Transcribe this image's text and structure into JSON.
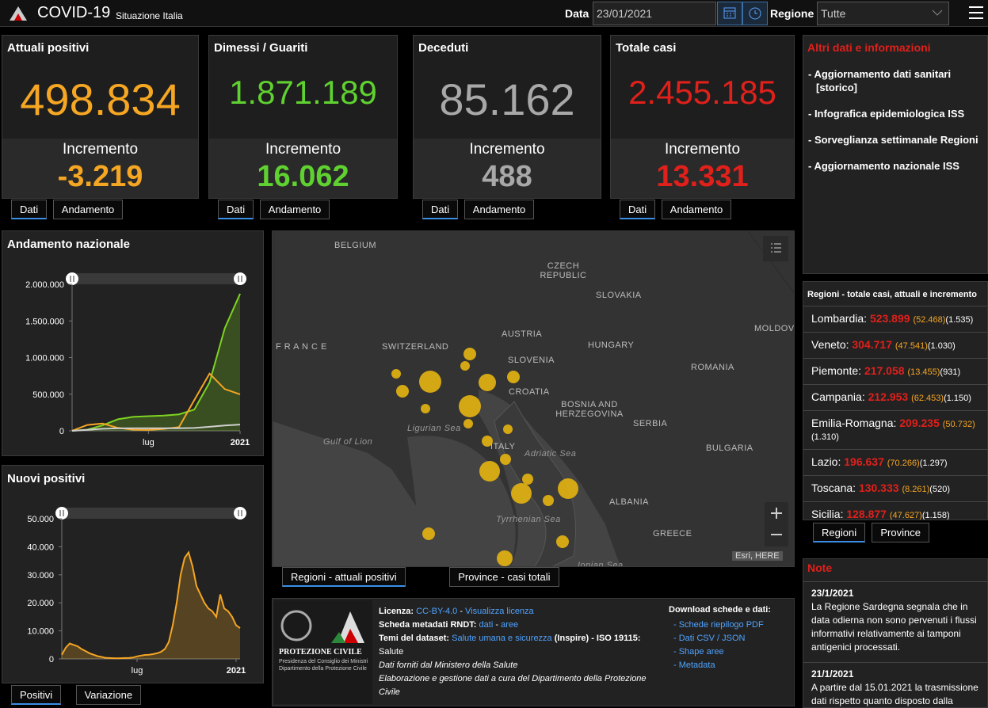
{
  "header": {
    "title": "COVID-19",
    "subtitle": "Situazione Italia",
    "date_label": "Data",
    "date": "23/01/2021",
    "region_label": "Regione",
    "region": "Tutte"
  },
  "cards": [
    {
      "title": "Attuali positivi",
      "value": "498.834",
      "increment_label": "Incremento",
      "increment": "-3.219",
      "color": "#f5a623",
      "tabs": [
        "Dati",
        "Andamento"
      ]
    },
    {
      "title": "Dimessi / Guariti",
      "value": "1.871.189",
      "increment_label": "Incremento",
      "increment": "16.062",
      "color": "#5fd130",
      "tabs": [
        "Dati",
        "Andamento"
      ]
    },
    {
      "title": "Deceduti",
      "value": "85.162",
      "increment_label": "Incremento",
      "increment": "488",
      "color": "#a8a8a8",
      "tabs": [
        "Dati",
        "Andamento"
      ]
    },
    {
      "title": "Totale casi",
      "value": "2.455.185",
      "increment_label": "Incremento",
      "increment": "13.331",
      "color": "#e0201b",
      "tabs": [
        "Dati",
        "Andamento"
      ]
    }
  ],
  "chart_data": [
    {
      "type": "line",
      "title": "Andamento nazionale",
      "ylim": [
        0,
        2000000
      ],
      "yticks": [
        0,
        {
          "value": 500000,
          "label": "500.000"
        },
        {
          "value": 1000000,
          "label": "1.000.000"
        },
        {
          "value": 1500000,
          "label": "1.500.000"
        },
        {
          "value": 2000000,
          "label": "2.000.000"
        }
      ],
      "xlim": [
        0,
        11
      ],
      "xticks": [
        {
          "value": 5,
          "label": "lug"
        },
        {
          "value": 11,
          "label": "2021"
        }
      ],
      "series": [
        {
          "color": "#7ed321",
          "area": true,
          "values": [
            0,
            16000,
            75000,
            158000,
            190000,
            200000,
            208000,
            225000,
            290000,
            660000,
            1400000,
            1871189
          ]
        },
        {
          "color": "#f5a623",
          "area": false,
          "values": [
            1000,
            80000,
            100000,
            40000,
            15000,
            12000,
            26000,
            50000,
            420000,
            780000,
            570000,
            498834
          ]
        },
        {
          "color": "#cfcfcf",
          "area": false,
          "values": [
            0,
            13000,
            28000,
            33000,
            35000,
            35100,
            35500,
            36000,
            39000,
            55000,
            74000,
            85162
          ]
        }
      ],
      "tabs": []
    },
    {
      "type": "line",
      "title": "Nuovi positivi",
      "ylim": [
        0,
        50000
      ],
      "yticks": [
        0,
        {
          "value": 10000,
          "label": "10.000"
        },
        {
          "value": 20000,
          "label": "20.000"
        },
        {
          "value": 30000,
          "label": "30.000"
        },
        {
          "value": 40000,
          "label": "40.000"
        },
        {
          "value": 50000,
          "label": "50.000"
        }
      ],
      "xlim": [
        0,
        45
      ],
      "xticks": [
        {
          "value": 19,
          "label": "lug"
        },
        {
          "value": 44,
          "label": "2021"
        }
      ],
      "series": [
        {
          "color": "#f5a623",
          "area": true,
          "values": [
            1500,
            4000,
            5500,
            5000,
            4500,
            3500,
            2800,
            2000,
            1500,
            1000,
            700,
            400,
            300,
            250,
            200,
            250,
            300,
            350,
            500,
            900,
            1200,
            1400,
            1500,
            1700,
            2000,
            2500,
            3500,
            6000,
            12000,
            20000,
            30000,
            36000,
            38000,
            33000,
            26000,
            23000,
            20000,
            18000,
            17000,
            15000,
            23000,
            18000,
            17000,
            15000,
            12000,
            11000
          ]
        }
      ],
      "tabs": [
        "Positivi",
        "Variazione"
      ]
    }
  ],
  "map": {
    "labels": [
      "BELGIUM",
      "CZECH REPUBLIC",
      "SLOVAKIA",
      "AUSTRIA",
      "HUNGARY",
      "SWITZERLAND",
      "F R A N C E",
      "SLOVENIA",
      "CROATIA",
      "ROMANIA",
      "MOLDOV",
      "BOSNIA AND HERZEGOVINA",
      "SERBIA",
      "BULGARIA",
      "Ligurian Sea",
      "Gulf of Lion",
      "ITALY",
      "Adriatic Sea",
      "Tyrrhenian Sea",
      "ALBANIA",
      "GREECE",
      "Ionian Sea"
    ],
    "attribution": "Esri, HERE",
    "tabs": [
      "Regioni - attuali positivi",
      "Province - casi totali"
    ]
  },
  "info": {
    "title": "Altri dati e informazioni",
    "links": [
      "- Aggiornamento dati sanitari [storico]",
      "- Infografica epidemiologica ISS",
      "- Sorveglianza settimanale Regioni",
      "- Aggiornamento nazionale ISS"
    ]
  },
  "regions": {
    "title": "Regioni - totale casi, attuali e incremento",
    "rows": [
      [
        "Lombardia:",
        "523.899",
        "(52.468)",
        "(1.535)"
      ],
      [
        "Veneto:",
        "304.717",
        "(47.541)",
        "(1.030)"
      ],
      [
        "Piemonte:",
        "217.058",
        "(13.455)",
        "(931)"
      ],
      [
        "Campania:",
        "212.953",
        "(62.453)",
        "(1.150)"
      ],
      [
        "Emilia-Romagna:",
        "209.235",
        "(50.732)",
        "(1.310)"
      ],
      [
        "Lazio:",
        "196.637",
        "(70.266)",
        "(1.297)"
      ],
      [
        "Toscana:",
        "130.333",
        "(8.261)",
        "(520)"
      ],
      [
        "Sicilia:",
        "128.877",
        "(47.627)",
        "(1.158)"
      ]
    ],
    "tabs": [
      "Regioni",
      "Province"
    ]
  },
  "note": {
    "title": "Note",
    "entries": [
      {
        "date": "23/1/2021",
        "text": "La Regione Sardegna segnala che in data odierna non sono pervenuti i flussi informativi relativamente ai tamponi antigenici processati."
      },
      {
        "date": "21/1/2021",
        "text": "A partire dal 15.01.2021 la trasmissione dati rispetto quanto disposto dalla"
      }
    ]
  },
  "footer": {
    "logo": [
      "PROTEZIONE CIVILE",
      "Presidenza del Consiglio dei Ministri",
      "Dipartimento della Protezione Civile"
    ],
    "lines": [
      [
        [
          "Licenza:",
          "b"
        ],
        [
          "CC-BY-4.0",
          "a"
        ],
        [
          "-",
          "t"
        ],
        [
          "Visualizza licenza",
          "a"
        ]
      ],
      [
        [
          "Scheda metadati RNDT:",
          "b"
        ],
        [
          "dati",
          "a"
        ],
        [
          "-",
          "t"
        ],
        [
          "aree",
          "a"
        ]
      ],
      [
        [
          "Temi del dataset:",
          "b"
        ],
        [
          "Salute umana e sicurezza",
          "a"
        ],
        [
          "(Inspire) - ISO 19115:",
          "b"
        ],
        [
          "Salute",
          "t"
        ]
      ],
      [
        [
          "Dati forniti dal Ministero della Salute",
          "i"
        ]
      ],
      [
        [
          "Elaborazione e gestione dati a cura del Dipartimento della Protezione Civile",
          "i"
        ]
      ]
    ],
    "download_title": "Download schede e dati:",
    "downloads": [
      "- Schede riepilogo PDF",
      "- Dati CSV / JSON",
      "- Shape aree",
      "- Metadata"
    ]
  }
}
